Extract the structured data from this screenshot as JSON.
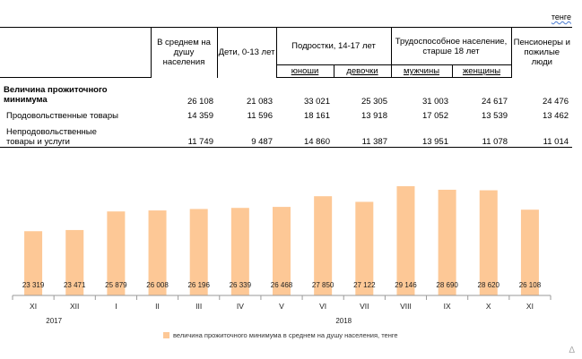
{
  "unit_label": "тенге",
  "table": {
    "headers": {
      "per_capita": "В среднем на душу населения",
      "children": "Дети, 0-13 лет",
      "teens": "Подростки, 14-17 лет",
      "teens_boys": "юноши",
      "teens_girls": "девочки",
      "working": "Трудоспособное население, старше 18 лет",
      "working_men": "мужчины",
      "working_women": "женщины",
      "pensioners": "Пенсионеры и пожилые люди"
    },
    "rows": [
      {
        "label": "Величина прожиточного минимума",
        "values": [
          "26 108",
          "21 083",
          "33 021",
          "25 305",
          "31 003",
          "24 617",
          "24 476"
        ]
      },
      {
        "label": "Продовольственные товары",
        "values": [
          "14 359",
          "11 596",
          "18 161",
          "13 918",
          "17 052",
          "13 539",
          "13 462"
        ]
      },
      {
        "label": "Непродовольственные товары и услуги",
        "values": [
          "11 749",
          "9 487",
          "14 860",
          "11 387",
          "13 951",
          "11 078",
          "11 014"
        ]
      }
    ]
  },
  "chart_data": {
    "type": "bar",
    "categories": [
      "XI",
      "XII",
      "I",
      "II",
      "III",
      "IV",
      "V",
      "VI",
      "VII",
      "VIII",
      "IX",
      "X",
      "XI"
    ],
    "year_labels": [
      "2017",
      "2018"
    ],
    "values": [
      23319,
      23471,
      25879,
      26008,
      26196,
      26339,
      26468,
      27850,
      27122,
      29146,
      28690,
      28620,
      26108
    ],
    "value_labels": [
      "23 319",
      "23 471",
      "25 879",
      "26 008",
      "26 196",
      "26 339",
      "26 468",
      "27 850",
      "27 122",
      "29 146",
      "28 690",
      "28 620",
      "26 108"
    ],
    "legend": "величина прожиточного минимума в среднем на душу населения, тенге",
    "ylim": [
      15000,
      29146
    ],
    "bar_color": "#fdc896",
    "grid": false,
    "legend_position": "bottom"
  },
  "corner_mark": "Δ"
}
